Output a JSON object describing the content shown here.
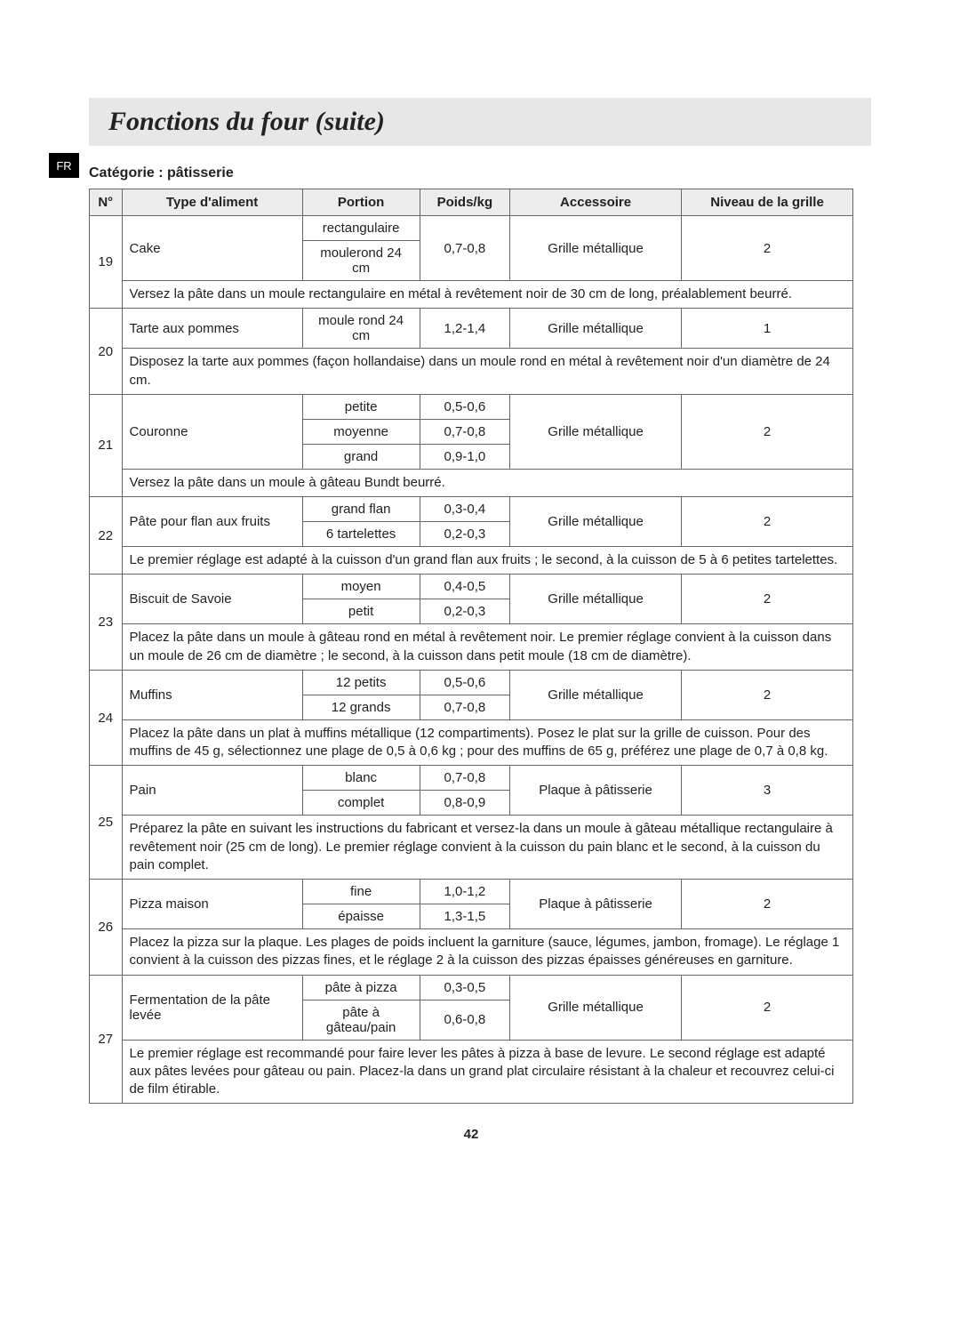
{
  "lang_tab": "FR",
  "title": "Fonctions du four (suite)",
  "category_label": "Catégorie : pâtisserie",
  "page_number": "42",
  "columns": {
    "num": "N°",
    "type": "Type d'aliment",
    "portion": "Portion",
    "poids": "Poids/kg",
    "accessoire": "Accessoire",
    "niveau": "Niveau de la grille"
  },
  "rows": {
    "r19": {
      "num": "19",
      "type": "Cake",
      "portion_a": "rectangulaire",
      "portion_b": "moulerond 24 cm",
      "poids": "0,7-0,8",
      "acc": "Grille métallique",
      "niv": "2",
      "desc": "Versez la pâte dans un moule rectangulaire en métal à revêtement noir de 30 cm de long, préalablement beurré."
    },
    "r20": {
      "num": "20",
      "type": "Tarte aux pommes",
      "portion": "moule rond 24 cm",
      "poids": "1,2-1,4",
      "acc": "Grille métallique",
      "niv": "1",
      "desc": "Disposez la tarte aux pommes (façon hollandaise) dans un moule rond en métal à revêtement noir d'un diamètre de 24 cm."
    },
    "r21": {
      "num": "21",
      "type": "Couronne",
      "portion_a": "petite",
      "poids_a": "0,5-0,6",
      "portion_b": "moyenne",
      "poids_b": "0,7-0,8",
      "portion_c": "grand",
      "poids_c": "0,9-1,0",
      "acc": "Grille métallique",
      "niv": "2",
      "desc": "Versez la pâte dans un moule à gâteau Bundt beurré."
    },
    "r22": {
      "num": "22",
      "type": "Pâte pour flan aux fruits",
      "portion_a": "grand flan",
      "poids_a": "0,3-0,4",
      "portion_b": "6 tartelettes",
      "poids_b": "0,2-0,3",
      "acc": "Grille métallique",
      "niv": "2",
      "desc": "Le premier réglage est adapté à la cuisson d'un grand flan aux fruits ; le second, à la cuisson de 5 à 6 petites tartelettes."
    },
    "r23": {
      "num": "23",
      "type": "Biscuit de Savoie",
      "portion_a": "moyen",
      "poids_a": "0,4-0,5",
      "portion_b": "petit",
      "poids_b": "0,2-0,3",
      "acc": "Grille métallique",
      "niv": "2",
      "desc": "Placez la pâte dans un moule à gâteau rond en métal à revêtement noir. Le premier réglage convient à la cuisson dans un moule de 26 cm de diamètre ; le second, à la cuisson dans petit moule (18 cm de diamètre)."
    },
    "r24": {
      "num": "24",
      "type": "Muffins",
      "portion_a": "12 petits",
      "poids_a": "0,5-0,6",
      "portion_b": "12 grands",
      "poids_b": "0,7-0,8",
      "acc": "Grille métallique",
      "niv": "2",
      "desc": "Placez la pâte dans un plat à muffins métallique (12 compartiments). Posez le plat sur la grille de cuisson.\nPour des muffins de 45 g, sélectionnez une plage de 0,5 à 0,6 kg ; pour des muffins de 65 g, préférez une plage de 0,7 à 0,8 kg."
    },
    "r25": {
      "num": "25",
      "type": "Pain",
      "portion_a": "blanc",
      "poids_a": "0,7-0,8",
      "portion_b": "complet",
      "poids_b": "0,8-0,9",
      "acc": "Plaque à pâtisserie",
      "niv": "3",
      "desc": "Préparez la pâte en suivant les instructions du fabricant et versez-la dans un moule à gâteau métallique rectangulaire à revêtement noir (25 cm de long). Le premier réglage convient à la cuisson du pain blanc et le second, à la cuisson du pain complet."
    },
    "r26": {
      "num": "26",
      "type": "Pizza maison",
      "portion_a": "fine",
      "poids_a": "1,0-1,2",
      "portion_b": "épaisse",
      "poids_b": "1,3-1,5",
      "acc": "Plaque à pâtisserie",
      "niv": "2",
      "desc": "Placez la pizza sur la plaque. Les plages de poids incluent la garniture (sauce, légumes, jambon, fromage). Le réglage 1 convient à la cuisson des pizzas fines, et le réglage 2 à la cuisson des pizzas épaisses généreuses en garniture."
    },
    "r27": {
      "num": "27",
      "type": "Fermentation de la pâte levée",
      "portion_a": "pâte à pizza",
      "poids_a": "0,3-0,5",
      "portion_b": "pâte à gâteau/pain",
      "poids_b": "0,6-0,8",
      "acc": "Grille métallique",
      "niv": "2",
      "desc": "Le premier réglage est recommandé pour faire lever les pâtes à pizza à base de levure. Le second réglage est adapté aux pâtes levées pour gâteau ou pain. Placez-la dans un grand plat circulaire résistant à la chaleur et recouvrez celui-ci de film étirable."
    }
  }
}
